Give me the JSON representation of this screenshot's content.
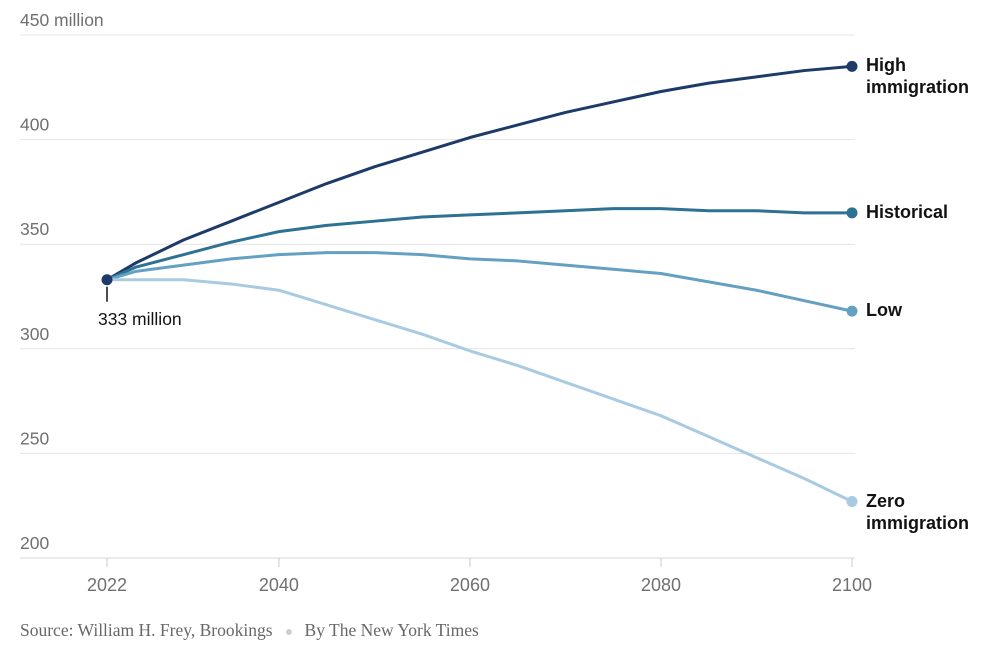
{
  "chart_data": {
    "type": "line",
    "x": [
      2022,
      2025,
      2030,
      2035,
      2040,
      2045,
      2050,
      2055,
      2060,
      2065,
      2070,
      2075,
      2080,
      2085,
      2090,
      2095,
      2100
    ],
    "series": [
      {
        "id": "high-immigration",
        "name": "High immigration",
        "color": "#1d3a68",
        "values": [
          333,
          341,
          352,
          361,
          370,
          379,
          387,
          394,
          401,
          407,
          413,
          418,
          423,
          427,
          430,
          433,
          435
        ]
      },
      {
        "id": "historical",
        "name": "Historical",
        "color": "#2d7193",
        "values": [
          333,
          339,
          345,
          351,
          356,
          359,
          361,
          363,
          364,
          365,
          366,
          367,
          367,
          366,
          366,
          365,
          365
        ]
      },
      {
        "id": "low",
        "name": "Low",
        "color": "#64a0c2",
        "values": [
          333,
          337,
          340,
          343,
          345,
          346,
          346,
          345,
          343,
          342,
          340,
          338,
          336,
          332,
          328,
          323,
          318
        ]
      },
      {
        "id": "zero-immigration",
        "name": "Zero immigration",
        "color": "#a9cbe2",
        "values": [
          333,
          333,
          333,
          331,
          328,
          321,
          314,
          307,
          299,
          292,
          284,
          276,
          268,
          258,
          248,
          238,
          227
        ]
      }
    ],
    "y_ticks": [
      {
        "value": 450,
        "label": "450 million"
      },
      {
        "value": 400,
        "label": "400"
      },
      {
        "value": 350,
        "label": "350"
      },
      {
        "value": 300,
        "label": "300"
      },
      {
        "value": 250,
        "label": "250"
      },
      {
        "value": 200,
        "label": "200"
      }
    ],
    "x_ticks": [
      {
        "value": 2022,
        "label": "2022"
      },
      {
        "value": 2040,
        "label": "2040"
      },
      {
        "value": 2060,
        "label": "2060"
      },
      {
        "value": 2080,
        "label": "2080"
      },
      {
        "value": 2100,
        "label": "2100"
      }
    ],
    "ylim": [
      200,
      450
    ],
    "xlim": [
      2022,
      2100
    ],
    "grid": "horizontal",
    "legend_position": "right-of-line-ends",
    "annotation": {
      "year": 2022,
      "value": 333,
      "text": "333 million"
    },
    "colors": {
      "axis_text": "#707070",
      "gridline": "#e4e4e4",
      "baseline": "#d7d7d7",
      "tick": "#c9c9c9",
      "annotation_text": "#121212",
      "legend_text": "#121212"
    }
  },
  "footer": {
    "source": "Source: William H. Frey, Brookings",
    "byline": "By The New York Times"
  }
}
